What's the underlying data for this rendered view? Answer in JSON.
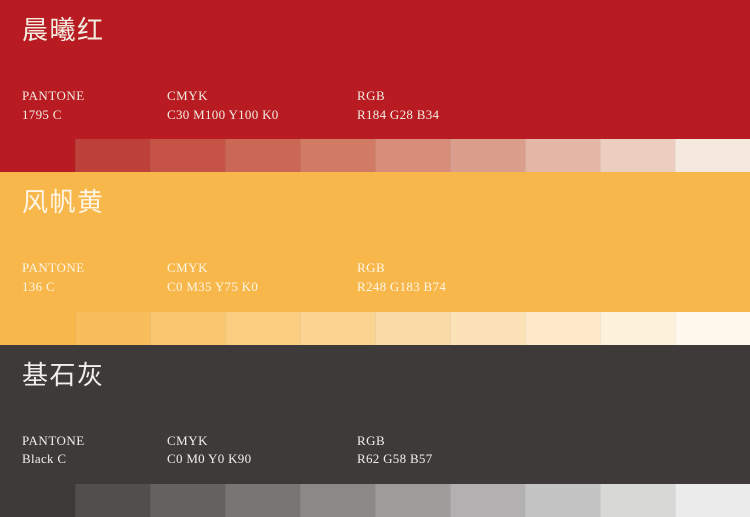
{
  "page": {
    "background": "#FFFFFF"
  },
  "sections": [
    {
      "id": "morning-dawn-red",
      "title": "晨曦红",
      "band_color": "#B81C22",
      "text_color": "#F2ECE1",
      "specs": [
        {
          "label": "PANTONE",
          "value": "1795 C"
        },
        {
          "label": "CMYK",
          "value": "C30 M100 Y100 K0"
        },
        {
          "label": "RGB",
          "value": "R184 G28 B34"
        }
      ],
      "tints": [
        "#B81C22",
        "#BE403B",
        "#C55447",
        "#CB6755",
        "#D17A64",
        "#D78D77",
        "#DC9E8C",
        "#E4B6A5",
        "#ECCEC1",
        "#F5E8DF"
      ]
    },
    {
      "id": "sail-yellow",
      "title": "风帆黄",
      "band_color": "#F8B74A",
      "text_color": "#FDF5E6",
      "specs": [
        {
          "label": "PANTONE",
          "value": "136 C"
        },
        {
          "label": "CMYK",
          "value": "C0 M35 Y75 K0"
        },
        {
          "label": "RGB",
          "value": "R248 G183 B74"
        }
      ],
      "tints": [
        "#F8B74A",
        "#F9BE5C",
        "#F9C56E",
        "#FACD80",
        "#FBD492",
        "#FBDBA5",
        "#FCE2B7",
        "#FDE9C9",
        "#FEF1DB",
        "#FEF8ED"
      ]
    },
    {
      "id": "cornerstone-gray",
      "title": "基石灰",
      "band_color": "#3E3A39",
      "text_color": "#F1EFEC",
      "specs": [
        {
          "label": "PANTONE",
          "value": "Black C"
        },
        {
          "label": "CMYK",
          "value": "C0 M0 Y0 K90"
        },
        {
          "label": "RGB",
          "value": "R62 G58 B57"
        }
      ],
      "tints": [
        "#3E3A39",
        "#514E4D",
        "#656161",
        "#787574",
        "#8B8988",
        "#9F9D9C",
        "#B2B0B0",
        "#C5C4C4",
        "#D8D8D7",
        "#ECEBEB"
      ]
    }
  ]
}
